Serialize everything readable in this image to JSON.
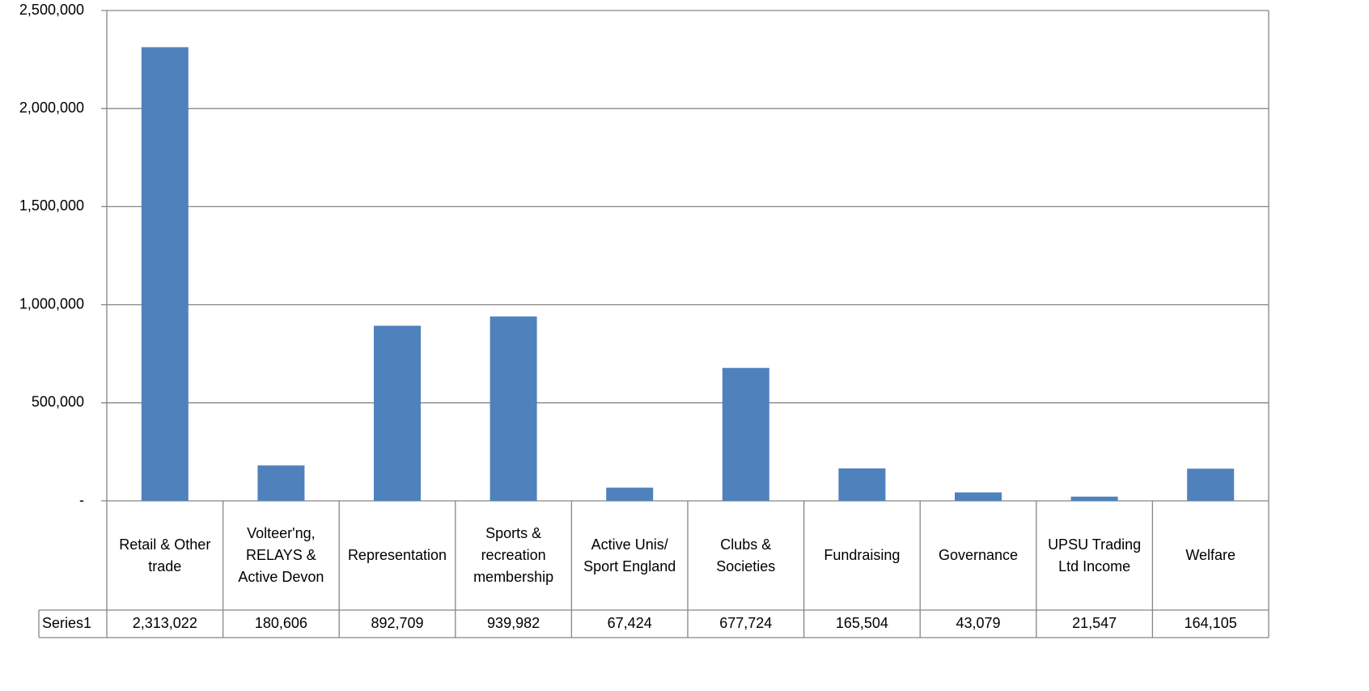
{
  "chart_data": {
    "type": "bar",
    "categories": [
      "Retail & Other trade",
      "Volteer'ng, RELAYS & Active Devon",
      "Representation",
      "Sports & recreation membership",
      "Active Unis/ Sport England",
      "Clubs & Societies",
      "Fundraising",
      "Governance",
      "UPSU Trading Ltd Income",
      "Welfare"
    ],
    "series": [
      {
        "name": "Series1",
        "color": "#4f81bd",
        "values": [
          2313022,
          180606,
          892709,
          939982,
          67424,
          677724,
          165504,
          43079,
          21547,
          164105
        ],
        "value_labels": [
          "2,313,022",
          "180,606",
          "892,709",
          "939,982",
          "67,424",
          "677,724",
          "165,504",
          "43,079",
          "21,547",
          "164,105"
        ]
      }
    ],
    "ylim": [
      0,
      2500000
    ],
    "yticks": [
      {
        "value": 0,
        "label": "-"
      },
      {
        "value": 500000,
        "label": "500,000"
      },
      {
        "value": 1000000,
        "label": "1,000,000"
      },
      {
        "value": 1500000,
        "label": "1,500,000"
      },
      {
        "value": 2000000,
        "label": "2,000,000"
      },
      {
        "value": 2500000,
        "label": "2,500,000"
      }
    ],
    "grid": true
  }
}
